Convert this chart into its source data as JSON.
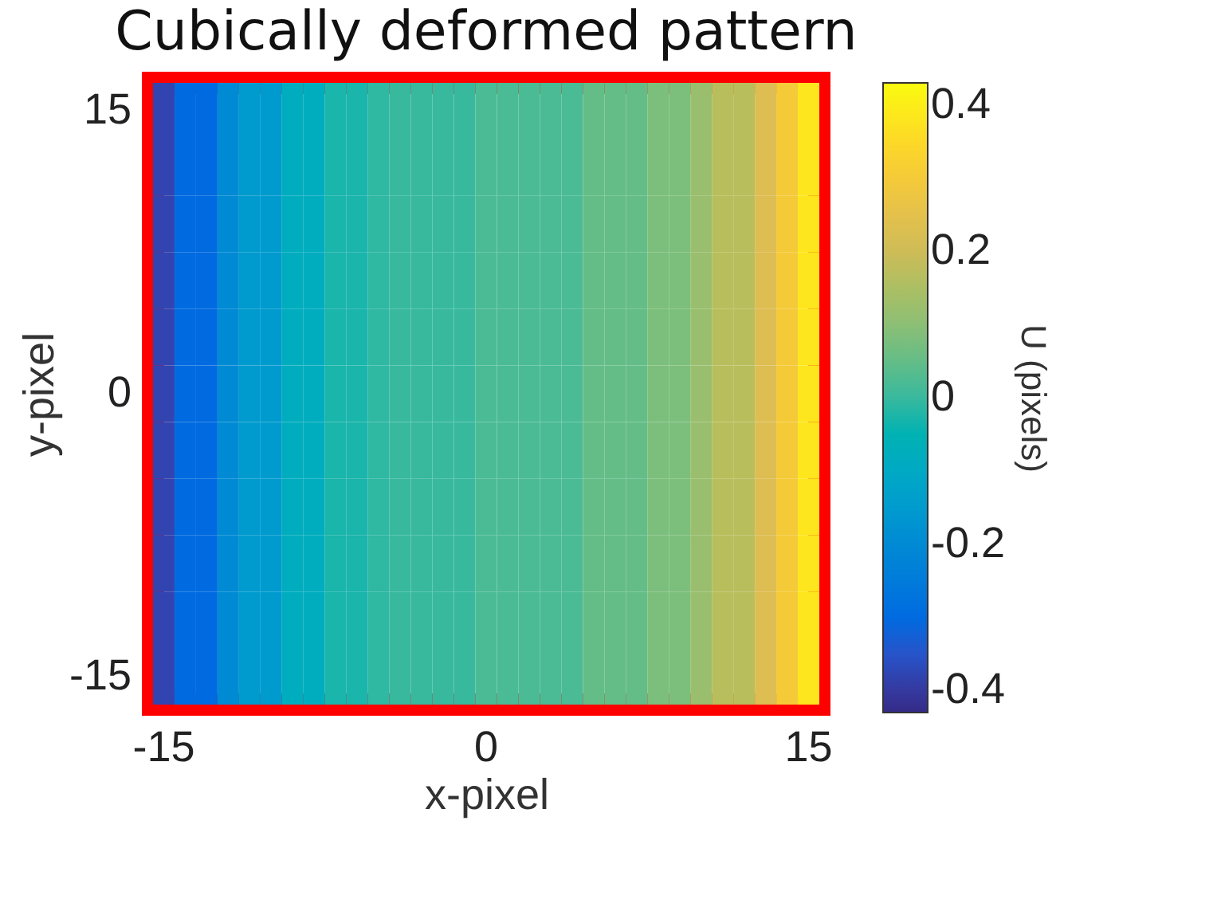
{
  "chart_data": {
    "type": "heatmap",
    "title": "Cubically deformed pattern",
    "xlabel": "x-pixel",
    "ylabel": "y-pixel",
    "clabel": "U (pixels)",
    "categories": [
      "-15",
      null,
      null,
      null,
      null,
      null,
      null,
      null,
      null,
      null,
      null,
      null,
      null,
      null,
      null,
      "0",
      null,
      null,
      null,
      null,
      null,
      null,
      null,
      null,
      null,
      null,
      null,
      null,
      null,
      null,
      "15"
    ],
    "y_categories": [
      "15",
      null,
      null,
      null,
      null,
      "0",
      null,
      null,
      null,
      null,
      "-15"
    ],
    "cells": [
      [
        -0.38,
        -0.3,
        -0.3,
        -0.2,
        -0.15,
        -0.15,
        -0.08,
        -0.08,
        -0.03,
        -0.03,
        -0.01,
        0,
        0,
        0,
        0,
        0.02,
        0.02,
        0.02,
        0.02,
        0.02,
        0.05,
        0.05,
        0.05,
        0.08,
        0.08,
        0.12,
        0.17,
        0.17,
        0.23,
        0.3,
        0.38
      ],
      [
        -0.38,
        -0.3,
        -0.3,
        -0.2,
        -0.15,
        -0.15,
        -0.08,
        -0.08,
        -0.03,
        -0.03,
        -0.01,
        0,
        0,
        0,
        0,
        0.02,
        0.02,
        0.02,
        0.02,
        0.02,
        0.05,
        0.05,
        0.05,
        0.08,
        0.08,
        0.12,
        0.17,
        0.17,
        0.23,
        0.3,
        0.38
      ],
      [
        -0.38,
        -0.3,
        -0.3,
        -0.2,
        -0.15,
        -0.15,
        -0.08,
        -0.08,
        -0.03,
        -0.03,
        -0.01,
        0,
        0,
        0,
        0,
        0.02,
        0.02,
        0.02,
        0.02,
        0.02,
        0.05,
        0.05,
        0.05,
        0.08,
        0.08,
        0.12,
        0.17,
        0.17,
        0.23,
        0.3,
        0.38
      ],
      [
        -0.38,
        -0.3,
        -0.3,
        -0.2,
        -0.15,
        -0.15,
        -0.08,
        -0.08,
        -0.03,
        -0.03,
        -0.01,
        0,
        0,
        0,
        0,
        0.02,
        0.02,
        0.02,
        0.02,
        0.02,
        0.05,
        0.05,
        0.05,
        0.08,
        0.08,
        0.12,
        0.17,
        0.17,
        0.23,
        0.3,
        0.38
      ],
      [
        -0.38,
        -0.3,
        -0.3,
        -0.2,
        -0.15,
        -0.15,
        -0.08,
        -0.08,
        -0.03,
        -0.03,
        -0.01,
        0,
        0,
        0,
        0,
        0.02,
        0.02,
        0.02,
        0.02,
        0.02,
        0.05,
        0.05,
        0.05,
        0.08,
        0.08,
        0.12,
        0.17,
        0.17,
        0.23,
        0.3,
        0.38
      ],
      [
        -0.38,
        -0.3,
        -0.3,
        -0.2,
        -0.15,
        -0.15,
        -0.08,
        -0.08,
        -0.03,
        -0.03,
        -0.01,
        0,
        0,
        0,
        0,
        0.02,
        0.02,
        0.02,
        0.02,
        0.02,
        0.05,
        0.05,
        0.05,
        0.08,
        0.08,
        0.12,
        0.17,
        0.17,
        0.23,
        0.3,
        0.38
      ],
      [
        -0.38,
        -0.3,
        -0.3,
        -0.2,
        -0.15,
        -0.15,
        -0.08,
        -0.08,
        -0.03,
        -0.03,
        -0.01,
        0,
        0,
        0,
        0,
        0.02,
        0.02,
        0.02,
        0.02,
        0.02,
        0.05,
        0.05,
        0.05,
        0.08,
        0.08,
        0.12,
        0.17,
        0.17,
        0.23,
        0.3,
        0.38
      ],
      [
        -0.38,
        -0.3,
        -0.3,
        -0.2,
        -0.15,
        -0.15,
        -0.08,
        -0.08,
        -0.03,
        -0.03,
        -0.01,
        0,
        0,
        0,
        0,
        0.02,
        0.02,
        0.02,
        0.02,
        0.02,
        0.05,
        0.05,
        0.05,
        0.08,
        0.08,
        0.12,
        0.17,
        0.17,
        0.23,
        0.3,
        0.38
      ],
      [
        -0.38,
        -0.3,
        -0.3,
        -0.2,
        -0.15,
        -0.15,
        -0.08,
        -0.08,
        -0.03,
        -0.03,
        -0.01,
        0,
        0,
        0,
        0,
        0.02,
        0.02,
        0.02,
        0.02,
        0.02,
        0.05,
        0.05,
        0.05,
        0.08,
        0.08,
        0.12,
        0.17,
        0.17,
        0.23,
        0.3,
        0.38
      ],
      [
        -0.38,
        -0.3,
        -0.3,
        -0.2,
        -0.15,
        -0.15,
        -0.08,
        -0.08,
        -0.03,
        -0.03,
        -0.01,
        0,
        0,
        0,
        0,
        0.02,
        0.02,
        0.02,
        0.02,
        0.02,
        0.05,
        0.05,
        0.05,
        0.08,
        0.08,
        0.12,
        0.17,
        0.17,
        0.23,
        0.3,
        0.38
      ],
      [
        -0.38,
        -0.3,
        -0.3,
        -0.2,
        -0.15,
        -0.15,
        -0.08,
        -0.08,
        -0.03,
        -0.03,
        -0.01,
        0,
        0,
        0,
        0,
        0.02,
        0.02,
        0.02,
        0.02,
        0.02,
        0.05,
        0.05,
        0.05,
        0.08,
        0.08,
        0.12,
        0.17,
        0.17,
        0.23,
        0.3,
        0.38
      ]
    ],
    "clim": [
      -0.43,
      0.43
    ],
    "cticks": [
      -0.4,
      -0.2,
      0,
      0.2,
      0.4
    ]
  }
}
